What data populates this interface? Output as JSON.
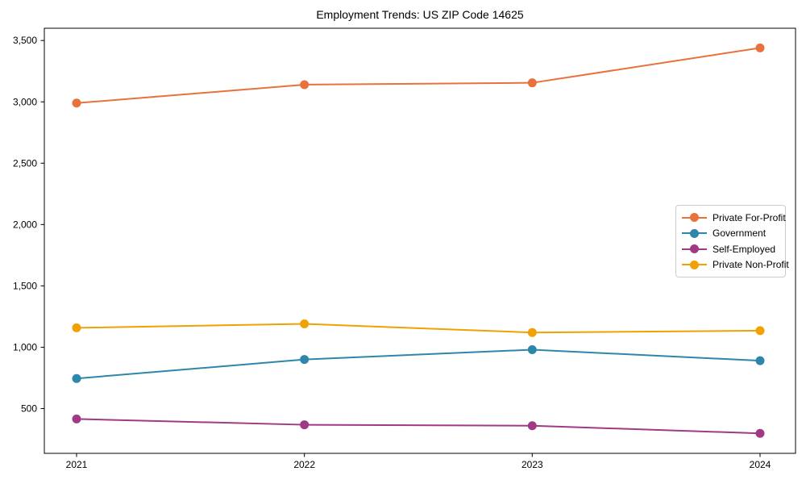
{
  "title": "Employment Trends: US ZIP Code 14625",
  "chart_data": {
    "type": "line",
    "title": "Employment Trends: US ZIP Code 14625",
    "x": [
      "2021",
      "2022",
      "2023",
      "2024"
    ],
    "series": [
      {
        "name": "Private For-Profit",
        "color": "#E8713C",
        "values": [
          2990,
          3140,
          3155,
          3440
        ]
      },
      {
        "name": "Government",
        "color": "#2E86AB",
        "values": [
          745,
          900,
          980,
          890
        ]
      },
      {
        "name": "Self-Employed",
        "color": "#A03A85",
        "values": [
          415,
          368,
          360,
          298
        ]
      },
      {
        "name": "Private Non-Profit",
        "color": "#F0A202",
        "values": [
          1158,
          1190,
          1120,
          1135
        ]
      }
    ],
    "xlabel": "",
    "ylabel": "",
    "ylim": [
      135,
      3600
    ],
    "yticks": [
      500,
      1000,
      1500,
      2000,
      2500,
      3000,
      3500
    ],
    "grid": false,
    "legend_position": "center-right",
    "marker": "circle",
    "axis_color": "#000000"
  }
}
